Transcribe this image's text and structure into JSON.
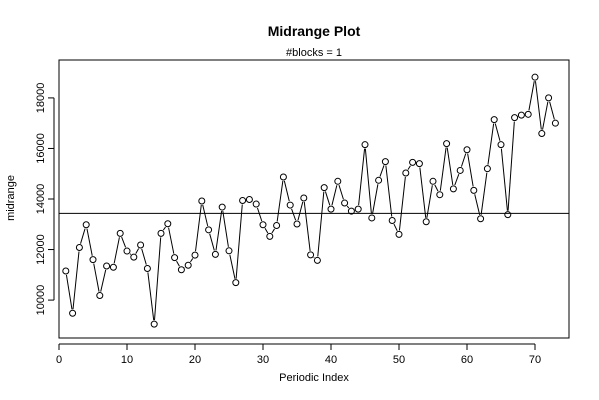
{
  "chart_data": {
    "type": "line",
    "title": "Midrange Plot",
    "subtitle": "#blocks =  1",
    "xlabel": "Periodic Index",
    "ylabel": "midrange",
    "xlim": [
      0,
      75
    ],
    "ylim": [
      8500,
      19500
    ],
    "xticks": [
      0,
      10,
      20,
      30,
      40,
      50,
      60,
      70
    ],
    "yticks": [
      10000,
      12000,
      14000,
      16000,
      18000
    ],
    "reference_line": 13430,
    "markers": "open-circle",
    "x": [
      1,
      2,
      3,
      4,
      5,
      6,
      7,
      8,
      9,
      10,
      11,
      12,
      13,
      14,
      15,
      16,
      17,
      18,
      19,
      20,
      21,
      22,
      23,
      24,
      25,
      26,
      27,
      28,
      29,
      30,
      31,
      32,
      33,
      34,
      35,
      36,
      37,
      38,
      39,
      40,
      41,
      42,
      43,
      44,
      45,
      46,
      47,
      48,
      49,
      50,
      51,
      52,
      53,
      54,
      55,
      56,
      57,
      58,
      59,
      60,
      61,
      62,
      63,
      64,
      65,
      66,
      67,
      68,
      69,
      70,
      71,
      72,
      73
    ],
    "values": [
      11150,
      9480,
      12080,
      12980,
      11600,
      10180,
      11350,
      11300,
      12640,
      11940,
      11700,
      12180,
      11250,
      9050,
      12640,
      13020,
      11680,
      11200,
      11380,
      11780,
      13920,
      12780,
      11810,
      13680,
      11950,
      10690,
      13940,
      13980,
      13800,
      12980,
      12520,
      12950,
      14870,
      13760,
      13010,
      14040,
      11790,
      11570,
      14450,
      13600,
      14700,
      13840,
      13520,
      13600,
      16150,
      13250,
      14740,
      15480,
      13150,
      12600,
      15030,
      15450,
      15400,
      13100,
      14700,
      14170,
      16190,
      14400,
      15130,
      15950,
      14340,
      13220,
      15200,
      17140,
      16150,
      13380,
      17220,
      17320,
      17350,
      18820,
      16590,
      18000,
      17000
    ]
  }
}
